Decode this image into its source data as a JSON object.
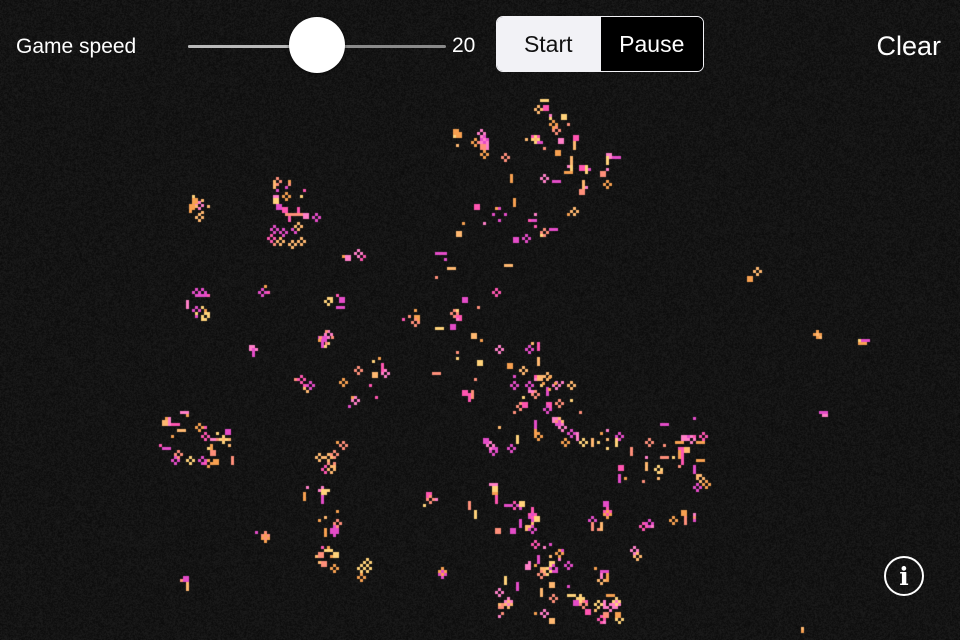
{
  "toolbar": {
    "speed_label": "Game speed",
    "speed_value": "20",
    "speed_min": 0,
    "speed_max": 40,
    "start_label": "Start",
    "pause_label": "Pause",
    "selected_mode": "Start",
    "clear_label": "Clear"
  },
  "info_button": {
    "icon": "info-icon",
    "glyph": "i"
  },
  "colors": {
    "background": "#0b0b0b",
    "accent": "#f2f2f6",
    "cell_palette": [
      "#ff7fc8",
      "#ff55b0",
      "#ffb870",
      "#ffd27a",
      "#ff8f7a",
      "#e44cc8",
      "#f7a050"
    ]
  },
  "board": {
    "cell_grid": 6,
    "clusters": [
      [
        548,
        128,
        30,
        20
      ],
      [
        465,
        143,
        20,
        12
      ],
      [
        590,
        165,
        28,
        16
      ],
      [
        530,
        185,
        50,
        14
      ],
      [
        500,
        220,
        45,
        10
      ],
      [
        285,
        210,
        30,
        26
      ],
      [
        200,
        205,
        12,
        6
      ],
      [
        352,
        252,
        10,
        4
      ],
      [
        430,
        262,
        18,
        5
      ],
      [
        748,
        270,
        6,
        2
      ],
      [
        200,
        300,
        15,
        10
      ],
      [
        262,
        292,
        8,
        3
      ],
      [
        330,
        298,
        12,
        5
      ],
      [
        325,
        338,
        10,
        6
      ],
      [
        360,
        378,
        30,
        12
      ],
      [
        470,
        305,
        30,
        8
      ],
      [
        410,
        320,
        12,
        5
      ],
      [
        455,
        355,
        40,
        12
      ],
      [
        530,
        370,
        30,
        12
      ],
      [
        545,
        398,
        28,
        22
      ],
      [
        510,
        428,
        30,
        10
      ],
      [
        575,
        425,
        20,
        6
      ],
      [
        605,
        435,
        15,
        8
      ],
      [
        640,
        460,
        28,
        12
      ],
      [
        680,
        440,
        28,
        20
      ],
      [
        698,
        482,
        10,
        5
      ],
      [
        185,
        435,
        28,
        20
      ],
      [
        215,
        447,
        20,
        12
      ],
      [
        328,
        452,
        15,
        10
      ],
      [
        310,
        490,
        12,
        6
      ],
      [
        328,
        520,
        14,
        8
      ],
      [
        325,
        555,
        14,
        10
      ],
      [
        360,
        565,
        10,
        4
      ],
      [
        258,
        533,
        6,
        3
      ],
      [
        182,
        578,
        5,
        3
      ],
      [
        430,
        500,
        10,
        4
      ],
      [
        495,
        510,
        28,
        14
      ],
      [
        525,
        512,
        15,
        8
      ],
      [
        600,
        510,
        18,
        8
      ],
      [
        645,
        522,
        6,
        3
      ],
      [
        680,
        514,
        15,
        6
      ],
      [
        545,
        555,
        22,
        14
      ],
      [
        530,
        585,
        45,
        22
      ],
      [
        605,
        608,
        15,
        14
      ],
      [
        575,
        605,
        12,
        6
      ],
      [
        600,
        570,
        10,
        5
      ],
      [
        860,
        340,
        5,
        3
      ],
      [
        815,
        330,
        4,
        2
      ],
      [
        820,
        410,
        4,
        2
      ],
      [
        798,
        630,
        4,
        2
      ],
      [
        440,
        568,
        4,
        2
      ],
      [
        630,
        548,
        4,
        2
      ],
      [
        280,
        180,
        8,
        4
      ],
      [
        300,
        380,
        8,
        5
      ],
      [
        250,
        345,
        6,
        3
      ]
    ]
  }
}
